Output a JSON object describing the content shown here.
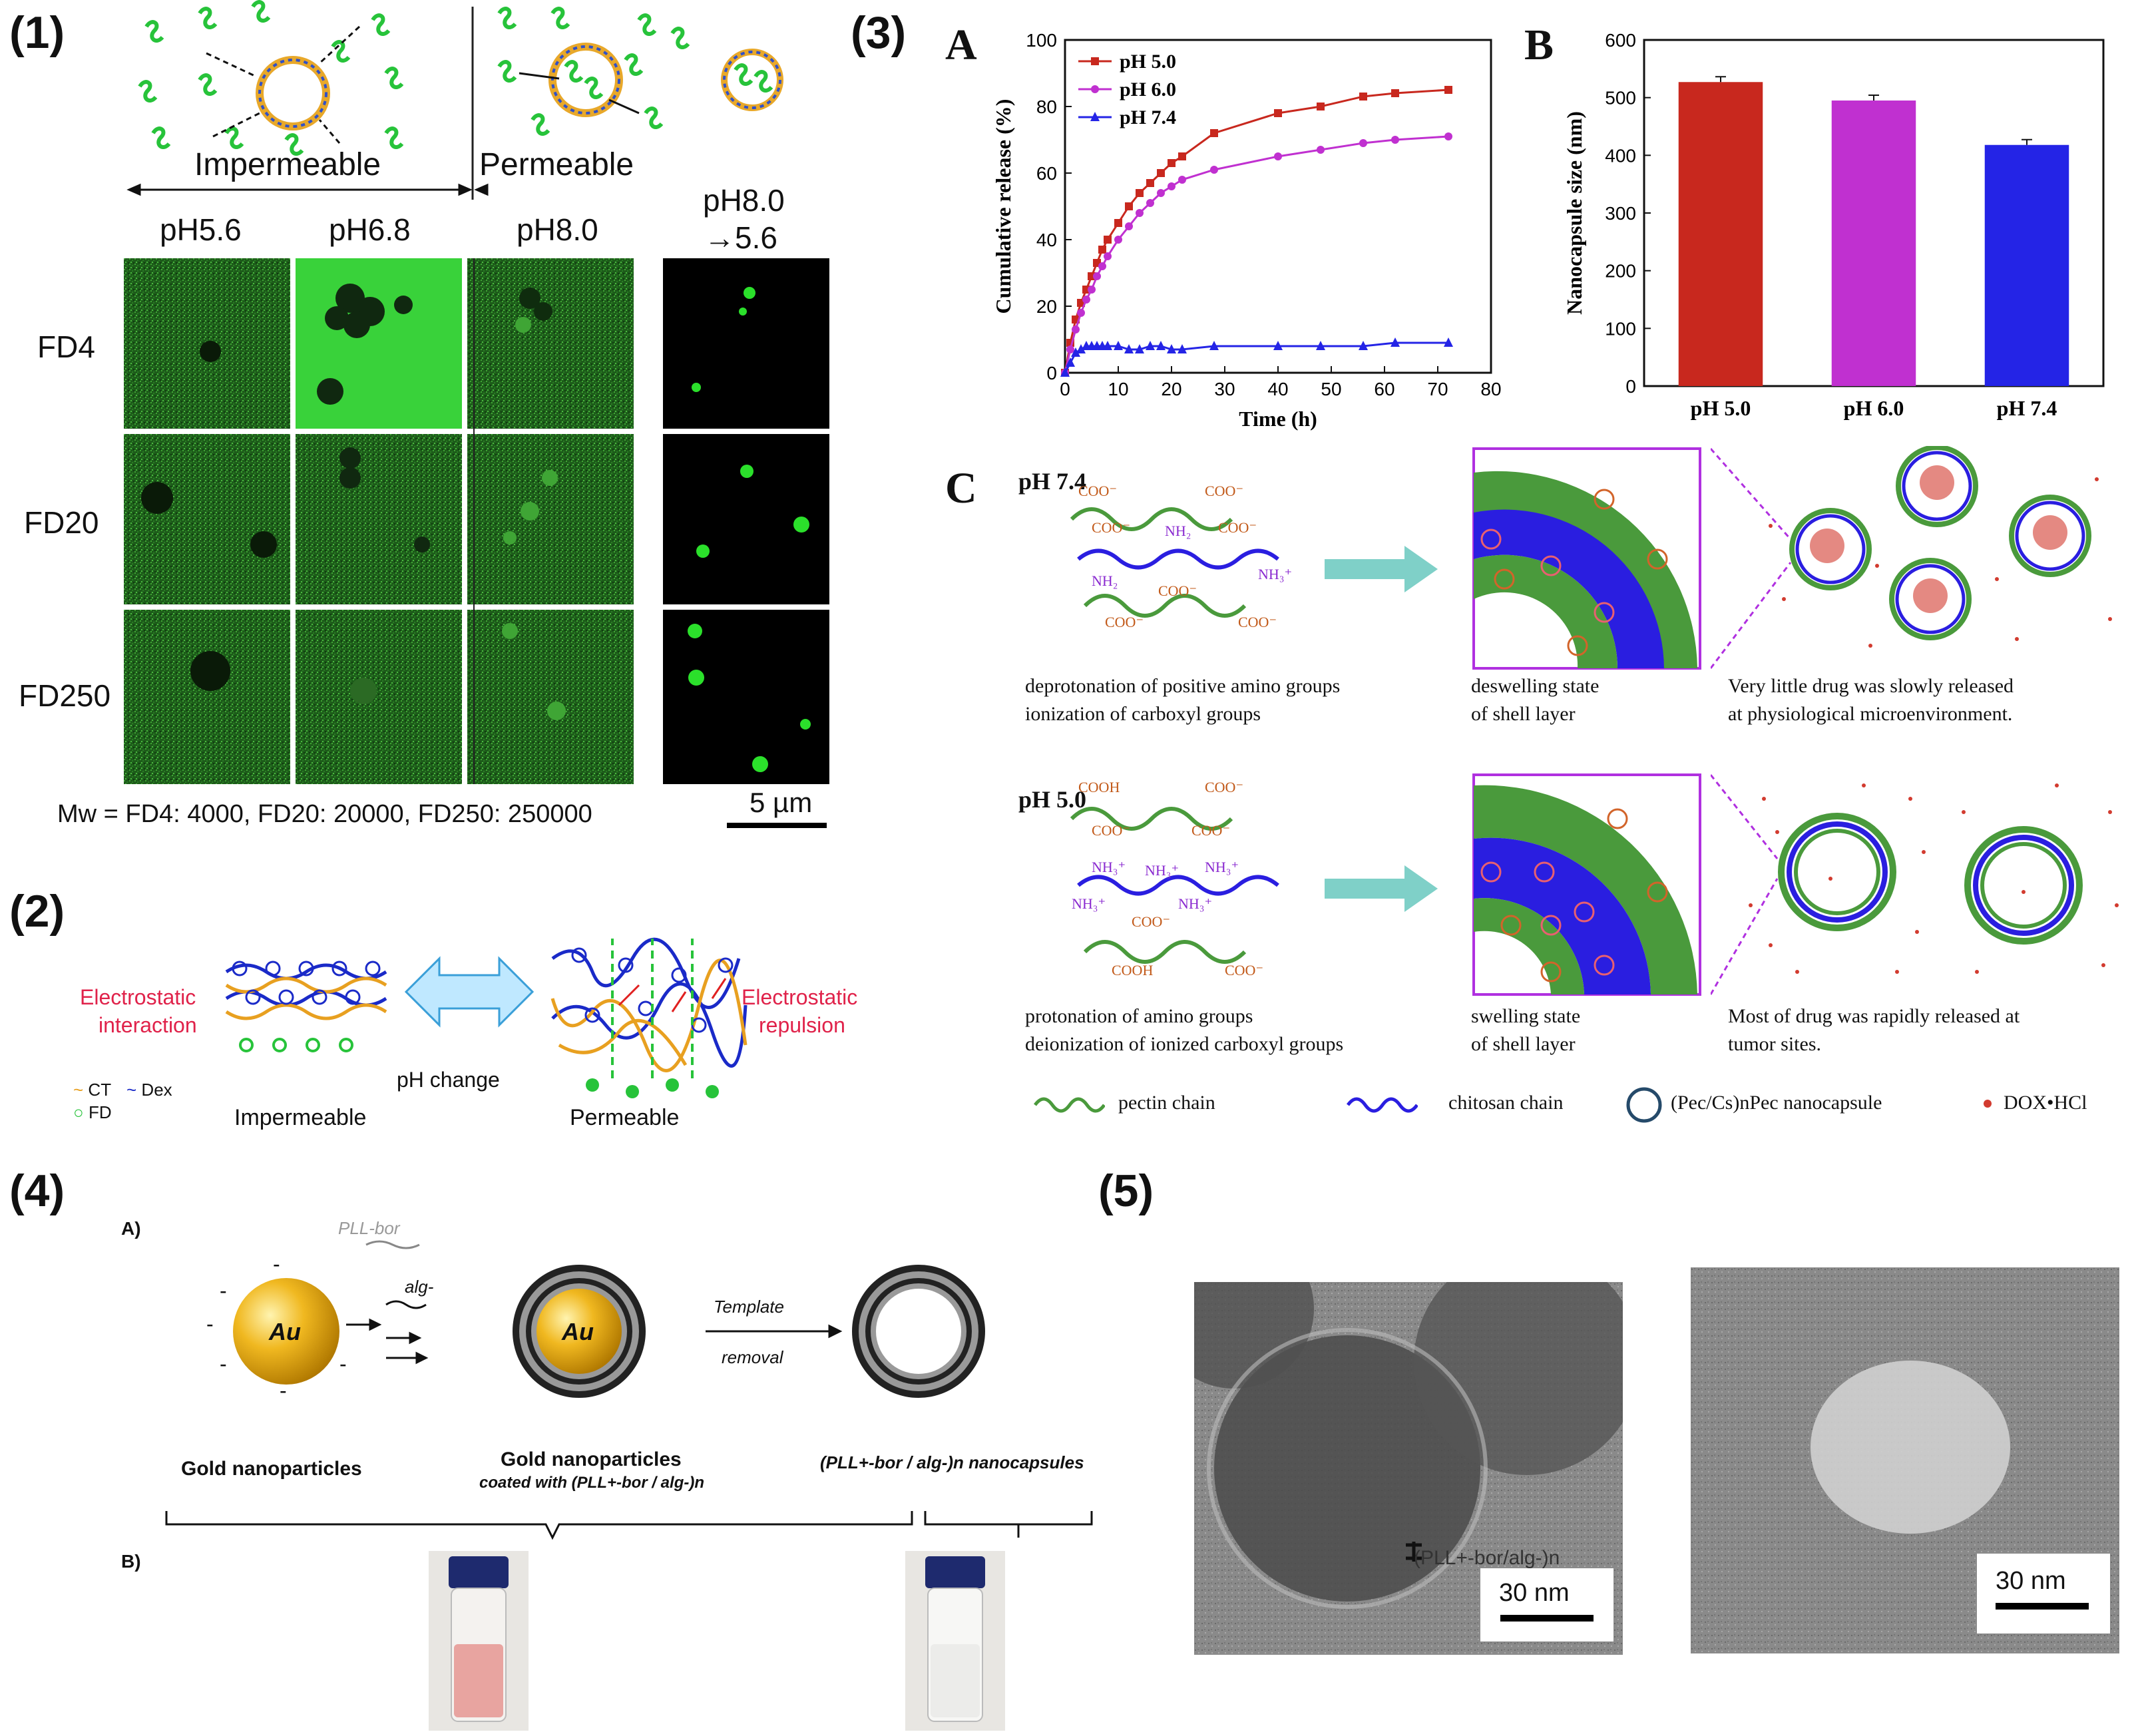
{
  "colors": {
    "green": "#2ecc40",
    "pectin": "#4a9a3c",
    "chitosan": "#2a1ee0",
    "drug": "#d23b2f",
    "magenta": "#c030d0",
    "red": "#c8281e",
    "blue": "#2424e6",
    "teal": "#7fd0c8",
    "orange": "#e89a2a"
  },
  "p1": {
    "label": "(1)",
    "impermeable": "Impermeable",
    "permeable": "Permeable",
    "ph": [
      "pH5.6",
      "pH6.8",
      "pH8.0",
      "pH8.0",
      "→5.6"
    ],
    "rows": [
      "FD4",
      "FD20",
      "FD250"
    ],
    "mw": "Mw = FD4: 4000, FD20: 20000, FD250: 250000",
    "scale": "5 µm"
  },
  "p2": {
    "label": "(2)",
    "left": [
      "Electrostatic",
      "interaction"
    ],
    "right": [
      "Electrostatic",
      "repulsion"
    ],
    "ph_change": "pH change",
    "impermeable": "Impermeable",
    "permeable": "Permeable",
    "legend": {
      "ct": "CT",
      "dex": "Dex",
      "fd": "FD"
    }
  },
  "p3": {
    "label": "(3)",
    "A": "A",
    "B": "B",
    "C": "C",
    "c_top": {
      "ph": "pH 7.4",
      "chem": [
        "COO-",
        "COO-",
        "COO-",
        "NH2",
        "COO-",
        "NH2",
        "COO-",
        "NH3+",
        "COO-",
        "COO-"
      ],
      "text1": [
        "deprotonation of positive amino groups",
        "ionization of carboxyl groups"
      ],
      "text2": [
        "deswelling state",
        "of shell layer"
      ],
      "text3": [
        "Very little drug was slowly released",
        "at physiological  microenvironment."
      ]
    },
    "c_bot": {
      "ph": "pH 5.0",
      "chem": [
        "COOH",
        "COO-",
        "COO-",
        "COO-",
        "NH3+",
        "NH3+",
        "NH3+",
        "NH3+",
        "NH3+",
        "COO-",
        "COO-",
        "COOH",
        "COO-"
      ],
      "text1": [
        "protonation of amino groups",
        "deionization of ionized carboxyl groups"
      ],
      "text2": [
        "swelling state",
        "of shell layer"
      ],
      "text3": [
        "Most of drug was rapidly released  at",
        "tumor sites."
      ]
    },
    "legend": {
      "pectin": "pectin chain",
      "chitosan": "chitosan chain",
      "capsule": "(Pec/Cs)nPec nanocapsule",
      "drug": "DOX•HCl"
    }
  },
  "chart_data": [
    {
      "type": "line",
      "title": "",
      "xlabel": "Time (h)",
      "ylabel": "Cumulative release (%)",
      "xlim": [
        0,
        80
      ],
      "ylim": [
        0,
        100
      ],
      "xticks": [
        0,
        10,
        20,
        30,
        40,
        50,
        60,
        70,
        80
      ],
      "yticks": [
        0,
        20,
        40,
        60,
        80,
        100
      ],
      "legend_position": "top-left",
      "series": [
        {
          "name": "pH 5.0",
          "color": "#c8281e",
          "marker": "square",
          "x": [
            0,
            1,
            2,
            3,
            4,
            5,
            6,
            7,
            8,
            10,
            12,
            14,
            16,
            18,
            20,
            22,
            28,
            40,
            48,
            56,
            62,
            72
          ],
          "y": [
            0,
            9,
            16,
            21,
            25,
            29,
            33,
            37,
            40,
            45,
            50,
            54,
            57,
            60,
            63,
            65,
            72,
            78,
            80,
            83,
            84,
            85
          ]
        },
        {
          "name": "pH 6.0",
          "color": "#c030d0",
          "marker": "circle",
          "x": [
            0,
            1,
            2,
            3,
            4,
            5,
            6,
            7,
            8,
            10,
            12,
            14,
            16,
            18,
            20,
            22,
            28,
            40,
            48,
            56,
            62,
            72
          ],
          "y": [
            0,
            7,
            13,
            18,
            22,
            25,
            29,
            32,
            35,
            40,
            44,
            48,
            51,
            54,
            56,
            58,
            61,
            65,
            67,
            69,
            70,
            71
          ]
        },
        {
          "name": "pH 7.4",
          "color": "#2424e6",
          "marker": "triangle",
          "x": [
            0,
            1,
            2,
            3,
            4,
            5,
            6,
            7,
            8,
            10,
            12,
            14,
            16,
            18,
            20,
            22,
            28,
            40,
            48,
            56,
            62,
            72
          ],
          "y": [
            0,
            3,
            6,
            7,
            8,
            8,
            8,
            8,
            8,
            8,
            7,
            7,
            8,
            8,
            7,
            7,
            8,
            8,
            8,
            8,
            9,
            9
          ]
        }
      ]
    },
    {
      "type": "bar",
      "title": "",
      "xlabel": "",
      "ylabel": "Nanocapsule size (nm)",
      "ylim": [
        0,
        600
      ],
      "yticks": [
        0,
        100,
        200,
        300,
        400,
        500,
        600
      ],
      "categories": [
        "pH 5.0",
        "pH 6.0",
        "pH 7.4"
      ],
      "values": [
        527,
        495,
        418
      ],
      "colors": [
        "#c8281e",
        "#c030d0",
        "#2424e6"
      ]
    }
  ],
  "p4": {
    "label": "(4)",
    "A": "A)",
    "B": "B)",
    "pll": "PLL-bor",
    "alg": "alg-",
    "au": "Au",
    "template": "Template",
    "removal": "removal",
    "cap1": "Gold nanoparticles",
    "cap2a": "Gold nanoparticles",
    "cap2b": "coated with (PLL+-bor / alg-)n",
    "cap3": "(PLL+-bor / alg-)n  nanocapsules"
  },
  "p5": {
    "label": "(5)",
    "annot": "(PLL+-bor/alg-)n",
    "scale1": "30 nm",
    "scale2": "30 nm"
  }
}
